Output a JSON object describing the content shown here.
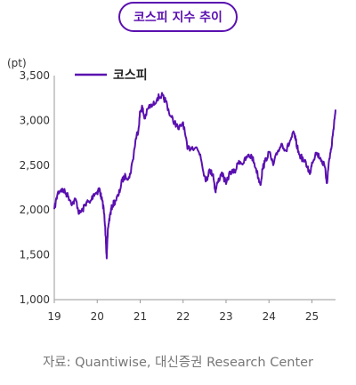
{
  "header": {
    "title": "코스피 지수 추이"
  },
  "source": "자료: Quantiwise, 대신증권 Research Center",
  "colors": {
    "accent": "#5a10b0",
    "line": "#5a10b0",
    "axis": "#9a9a9a"
  },
  "chart_data": {
    "type": "line",
    "title": "",
    "ylabel": "(pt)",
    "xlabel": "",
    "ylim": [
      1000,
      3500
    ],
    "yticks": [
      1000,
      1500,
      2000,
      2500,
      3000,
      3500
    ],
    "ytick_labels": [
      "1,000",
      "1,500",
      "2,000",
      "2,500",
      "3,000",
      "3,500"
    ],
    "xlim": [
      2019.0,
      2025.55
    ],
    "xticks": [
      2019,
      2020,
      2021,
      2022,
      2023,
      2024,
      2025
    ],
    "xtick_labels": [
      "19",
      "20",
      "21",
      "22",
      "23",
      "24",
      "25"
    ],
    "grid": false,
    "legend": "top-left",
    "series": [
      {
        "name": "코스피",
        "x": [
          2019.0,
          2019.08,
          2019.16,
          2019.25,
          2019.33,
          2019.42,
          2019.5,
          2019.58,
          2019.66,
          2019.75,
          2019.83,
          2019.92,
          2020.0,
          2020.05,
          2020.1,
          2020.15,
          2020.2,
          2020.22,
          2020.25,
          2020.3,
          2020.35,
          2020.42,
          2020.5,
          2020.58,
          2020.66,
          2020.75,
          2020.83,
          2020.9,
          2020.96,
          2021.0,
          2021.05,
          2021.1,
          2021.2,
          2021.3,
          2021.4,
          2021.5,
          2021.55,
          2021.6,
          2021.7,
          2021.8,
          2021.9,
          2022.0,
          2022.1,
          2022.2,
          2022.3,
          2022.4,
          2022.5,
          2022.55,
          2022.6,
          2022.7,
          2022.75,
          2022.8,
          2022.9,
          2023.0,
          2023.1,
          2023.2,
          2023.3,
          2023.4,
          2023.5,
          2023.6,
          2023.7,
          2023.8,
          2023.85,
          2023.9,
          2024.0,
          2024.1,
          2024.2,
          2024.3,
          2024.4,
          2024.5,
          2024.58,
          2024.62,
          2024.7,
          2024.8,
          2024.9,
          2024.95,
          2025.0,
          2025.1,
          2025.2,
          2025.3,
          2025.35,
          2025.4,
          2025.45,
          2025.5,
          2025.55
        ],
        "values": [
          2010,
          2190,
          2230,
          2200,
          2150,
          2070,
          2120,
          1960,
          2000,
          2090,
          2080,
          2180,
          2200,
          2240,
          2130,
          2020,
          1700,
          1460,
          1800,
          1950,
          2050,
          2100,
          2170,
          2330,
          2380,
          2360,
          2560,
          2800,
          2900,
          3100,
          3150,
          3020,
          3150,
          3170,
          3250,
          3280,
          3240,
          3220,
          3050,
          2980,
          2900,
          2980,
          2680,
          2700,
          2700,
          2620,
          2380,
          2330,
          2440,
          2400,
          2210,
          2300,
          2420,
          2290,
          2430,
          2420,
          2550,
          2520,
          2600,
          2600,
          2460,
          2280,
          2460,
          2530,
          2650,
          2500,
          2650,
          2740,
          2660,
          2780,
          2860,
          2780,
          2620,
          2560,
          2480,
          2400,
          2530,
          2640,
          2580,
          2480,
          2300,
          2560,
          2680,
          2900,
          3120
        ]
      }
    ]
  }
}
